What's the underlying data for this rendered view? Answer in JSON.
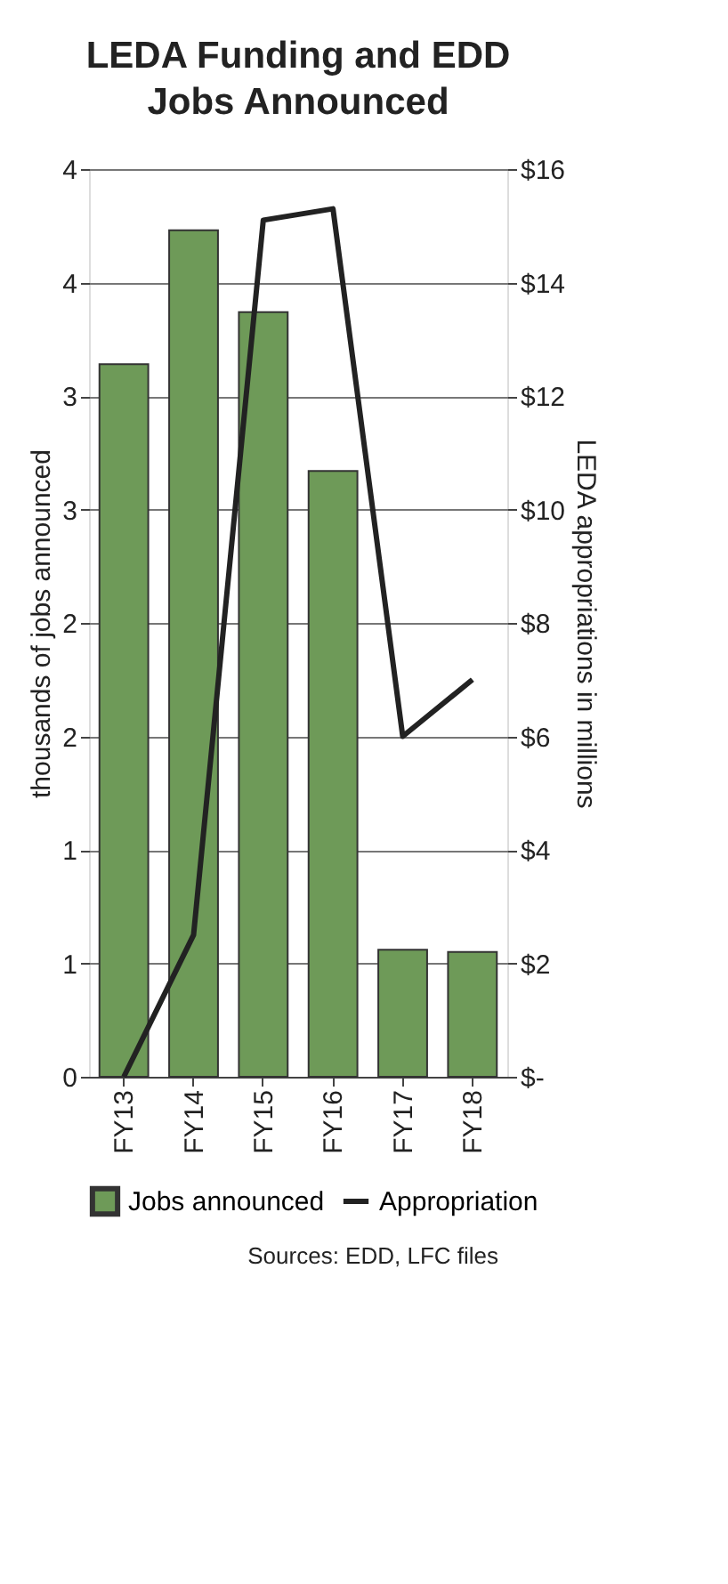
{
  "chart_data": {
    "type": "bar",
    "title": "LEDA Funding and EDD Jobs Announced",
    "ylabel": "thousands of jobs announced",
    "y2label": "LEDA appropriations in millions",
    "categories": [
      "FY13",
      "FY14",
      "FY15",
      "FY16",
      "FY17",
      "FY18"
    ],
    "series": [
      {
        "name": "Jobs announced",
        "color": "#6e9a58",
        "values": [
          3.14,
          3.73,
          3.37,
          2.67,
          0.56,
          0.55
        ]
      },
      {
        "name": "Appropriation",
        "type": "line",
        "axis": "y2",
        "color": "#222222",
        "values": [
          0,
          2.5,
          15.1,
          15.3,
          6.0,
          7.0
        ]
      }
    ],
    "ylim": [
      0,
      4
    ],
    "yticks": [
      0,
      {
        "value": 0.5,
        "label": "1"
      },
      1,
      {
        "value": 1.5,
        "label": "2"
      },
      2,
      {
        "value": 2.5,
        "label": "3"
      },
      3,
      {
        "value": 3.5,
        "label": "4"
      },
      4
    ],
    "y2lim": [
      0,
      16
    ],
    "y2ticks": [
      {
        "value": 0,
        "label": "$-"
      },
      {
        "value": 2,
        "label": "$2"
      },
      {
        "value": 4,
        "label": "$4"
      },
      {
        "value": 6,
        "label": "$6"
      },
      {
        "value": 8,
        "label": "$8"
      },
      {
        "value": 10,
        "label": "$10"
      },
      {
        "value": 12,
        "label": "$12"
      },
      {
        "value": 14,
        "label": "$14"
      },
      {
        "value": 16,
        "label": "$16"
      }
    ],
    "grid": "y",
    "legend": "bottom",
    "marker": "none",
    "line_style": "solid",
    "annotations": [
      "Sources:  EDD, LFC files"
    ]
  }
}
